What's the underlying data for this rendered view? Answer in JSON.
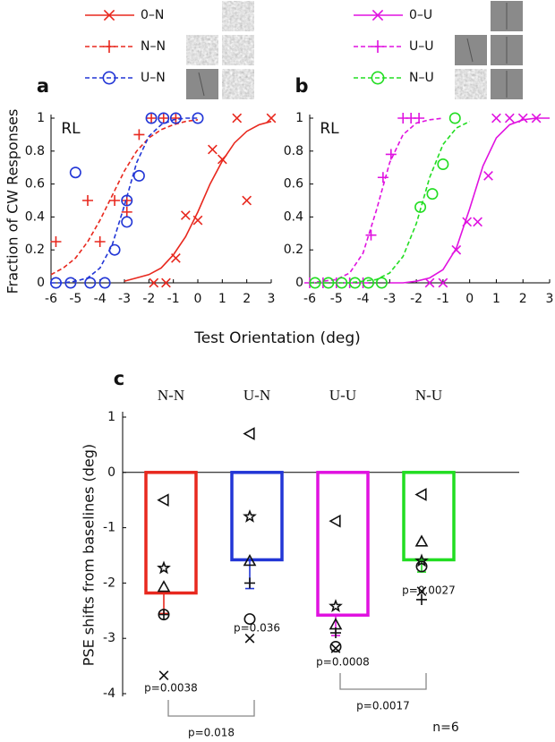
{
  "shared": {
    "xlabel": "Test Orientation (deg)",
    "ylabel": "Fraction of CW Responses"
  },
  "chart_data": [
    {
      "type": "line",
      "label": "a",
      "annotation": "RL",
      "xlim": [
        -6,
        3
      ],
      "xticks": [
        -6,
        -5,
        -4,
        -3,
        -2,
        -1,
        0,
        1,
        2,
        3
      ],
      "ylim": [
        0,
        1
      ],
      "yticks": [
        0,
        0.2,
        0.4,
        0.6,
        0.8,
        1
      ],
      "series": [
        {
          "name": "0–N",
          "color": "#e8281e",
          "dash": "solid",
          "marker": "x",
          "x": [
            -1.8,
            -1.3,
            -0.9,
            -0.5,
            0,
            0.6,
            1,
            2,
            1.6,
            3
          ],
          "values": [
            0,
            0,
            0.15,
            0.41,
            0.38,
            0.81,
            0.75,
            0.5,
            1,
            1
          ],
          "fit": {
            "x": [
              -3,
              -2.5,
              -2,
              -1.5,
              -1,
              -0.5,
              0,
              0.5,
              1,
              1.5,
              2,
              2.5,
              3
            ],
            "values": [
              0.01,
              0.03,
              0.05,
              0.09,
              0.17,
              0.28,
              0.43,
              0.6,
              0.74,
              0.85,
              0.92,
              0.96,
              0.98
            ]
          }
        },
        {
          "name": "N–N",
          "color": "#e8281e",
          "dash": "dashed",
          "marker": "plus",
          "x": [
            -5.8,
            -4.5,
            -4,
            -3.4,
            -2.9,
            -2.9,
            -2.4,
            -1.9,
            -1.4,
            -0.9
          ],
          "values": [
            0.25,
            0.5,
            0.25,
            0.5,
            0.43,
            0.5,
            0.9,
            1,
            1,
            1
          ],
          "fit": {
            "x": [
              -6,
              -5.5,
              -5,
              -4.5,
              -4,
              -3.5,
              -3,
              -2.5,
              -2,
              -1.5,
              -1,
              -0.5,
              0
            ],
            "values": [
              0.05,
              0.09,
              0.15,
              0.25,
              0.38,
              0.53,
              0.68,
              0.8,
              0.88,
              0.93,
              0.96,
              0.98,
              0.99
            ]
          }
        },
        {
          "name": "U–N",
          "color": "#2236d6",
          "dash": "dashed",
          "marker": "circle",
          "x": [
            -5,
            -5.8,
            -5.2,
            -4.4,
            -3.8,
            -3.4,
            -2.9,
            -2.9,
            -2.4,
            -1.9,
            -1.4,
            -0.9,
            0
          ],
          "values": [
            0.67,
            0,
            0,
            0,
            0,
            0.2,
            0.37,
            0.5,
            0.65,
            1,
            1,
            1,
            1
          ],
          "fit": {
            "x": [
              -6,
              -5.5,
              -5,
              -4.5,
              -4,
              -3.5,
              -3,
              -2.5,
              -2,
              -1.5,
              -1,
              -0.5,
              0
            ],
            "values": [
              0,
              0,
              0.01,
              0.03,
              0.09,
              0.23,
              0.47,
              0.73,
              0.89,
              0.96,
              0.99,
              1,
              1
            ]
          }
        }
      ]
    },
    {
      "type": "line",
      "label": "b",
      "annotation": "RL",
      "xlim": [
        -6,
        3
      ],
      "xticks": [
        -6,
        -5,
        -4,
        -3,
        -2,
        -1,
        0,
        1,
        2,
        3
      ],
      "ylim": [
        0,
        1
      ],
      "yticks": [
        0,
        0.2,
        0.4,
        0.6,
        0.8,
        1
      ],
      "series": [
        {
          "name": "0–U",
          "color": "#e012e0",
          "dash": "solid",
          "marker": "x",
          "x": [
            -1.5,
            -1,
            -0.5,
            -0.1,
            0.3,
            0.7,
            1,
            1.5,
            2,
            2.5
          ],
          "values": [
            0,
            0,
            0.2,
            0.37,
            0.37,
            0.65,
            1,
            1,
            1,
            1
          ],
          "fit": {
            "x": [
              -3,
              -2.5,
              -2,
              -1.5,
              -1,
              -0.5,
              0,
              0.5,
              1,
              1.5,
              2,
              2.5,
              3
            ],
            "values": [
              0,
              0,
              0.01,
              0.03,
              0.08,
              0.21,
              0.45,
              0.71,
              0.88,
              0.96,
              0.99,
              1,
              1
            ]
          }
        },
        {
          "name": "U–U",
          "color": "#e012e0",
          "dash": "dashed",
          "marker": "plus",
          "x": [
            -6,
            -5.5,
            -5,
            -4.5,
            -4,
            -3.7,
            -3.25,
            -2.95,
            -2.5,
            -2.2,
            -1.9
          ],
          "values": [
            0,
            0,
            0,
            0,
            0,
            0.29,
            0.64,
            0.78,
            1,
            1,
            1
          ],
          "fit": {
            "x": [
              -6,
              -5.5,
              -5,
              -4.5,
              -4,
              -3.5,
              -3,
              -2.5,
              -2,
              -1.5,
              -1
            ],
            "values": [
              0,
              0.01,
              0.02,
              0.06,
              0.18,
              0.44,
              0.73,
              0.9,
              0.97,
              0.99,
              1
            ]
          }
        },
        {
          "name": "N–U",
          "color": "#22dd22",
          "dash": "dashed",
          "marker": "circle",
          "x": [
            -5.8,
            -5.3,
            -4.8,
            -4.3,
            -3.8,
            -3.3,
            -1.85,
            -1.4,
            -1,
            -0.55
          ],
          "values": [
            0,
            0,
            0,
            0,
            0,
            0,
            0.46,
            0.54,
            0.72,
            1
          ],
          "fit": {
            "x": [
              -6,
              -5.5,
              -5,
              -4.5,
              -4,
              -3.5,
              -3,
              -2.5,
              -2,
              -1.5,
              -1,
              -0.5,
              0
            ],
            "values": [
              0,
              0,
              0,
              0,
              0.01,
              0.02,
              0.06,
              0.16,
              0.36,
              0.64,
              0.84,
              0.94,
              0.98
            ]
          }
        }
      ]
    },
    {
      "type": "bar",
      "label": "c",
      "ylabel": "PSE shifts from baselines (deg)",
      "categories": [
        "N-N",
        "U-N",
        "U-U",
        "N-U"
      ],
      "colors": [
        "#e8281e",
        "#2236d6",
        "#e012e0",
        "#22dd22"
      ],
      "values": [
        -2.18,
        -1.58,
        -2.58,
        -1.58
      ],
      "errors": [
        0.37,
        0.52,
        0.37,
        0.22
      ],
      "ylim": [
        -4,
        1
      ],
      "yticks": [
        -4,
        -3,
        -2,
        -1,
        0,
        1
      ],
      "subjects": [
        {
          "marker": "triangle-left",
          "values": [
            -0.5,
            0.7,
            -0.88,
            -0.4
          ]
        },
        {
          "marker": "star",
          "values": [
            -1.73,
            -0.8,
            -2.42,
            -1.6
          ]
        },
        {
          "marker": "triangle-up",
          "values": [
            -2.07,
            -1.6,
            -2.75,
            -1.25
          ]
        },
        {
          "marker": "circle",
          "values": [
            -2.57,
            -2.65,
            -3.15,
            -1.7
          ]
        },
        {
          "marker": "x",
          "values": [
            -3.67,
            -3.0,
            -3.18,
            -2.15
          ]
        },
        {
          "marker": "plus",
          "values": [
            -2.57,
            -2.0,
            -2.9,
            -2.3
          ]
        }
      ],
      "p_values": [
        "p=0.0038",
        "p=0.036",
        "p=0.0008",
        "p=0.0027"
      ],
      "comparisons": [
        {
          "categories": [
            "N-N",
            "U-N"
          ],
          "label": "p=0.018"
        },
        {
          "categories": [
            "U-U",
            "N-U"
          ],
          "label": "p=0.0017"
        }
      ],
      "n_label": "n=6"
    }
  ]
}
